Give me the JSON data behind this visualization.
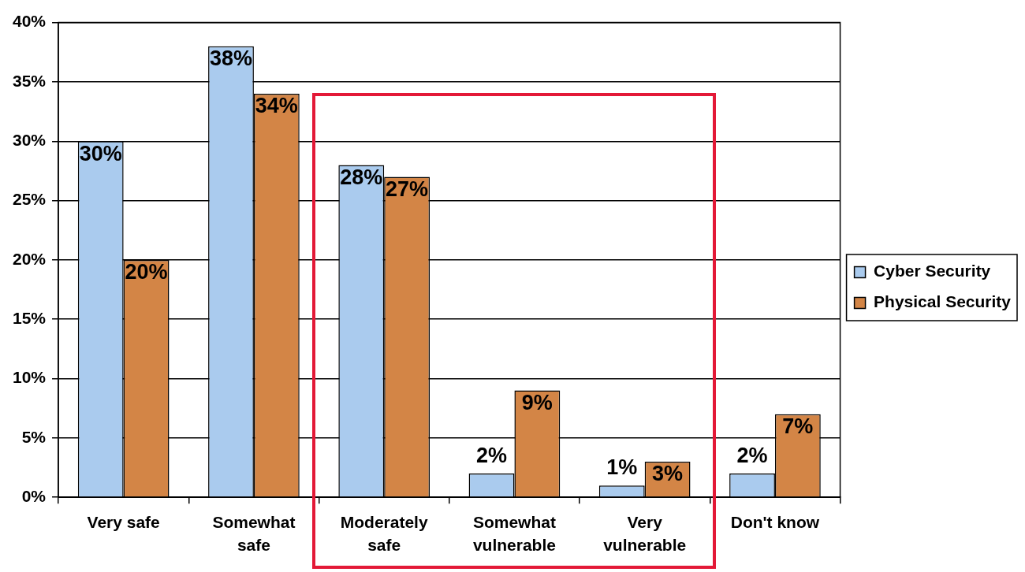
{
  "chart_data": {
    "type": "bar",
    "categories": [
      "Very safe",
      "Somewhat safe",
      "Moderately safe",
      "Somewhat vulnerable",
      "Very vulnerable",
      "Don't know"
    ],
    "series": [
      {
        "name": "Cyber Security",
        "color": "#aacbee",
        "values": [
          30,
          38,
          28,
          2,
          1,
          2
        ],
        "value_labels": [
          "30%",
          "38%",
          "28%",
          "2%",
          "1%",
          "2%"
        ]
      },
      {
        "name": "Physical Security",
        "color": "#d38546",
        "values": [
          20,
          34,
          27,
          9,
          3,
          7
        ],
        "value_labels": [
          "20%",
          "34%",
          "27%",
          "9%",
          "3%",
          "7%"
        ]
      }
    ],
    "ylim": [
      0,
      40
    ],
    "yticks": [
      {
        "value": 0,
        "label": "0%"
      },
      {
        "value": 5,
        "label": "5%"
      },
      {
        "value": 10,
        "label": "10%"
      },
      {
        "value": 15,
        "label": "15%"
      },
      {
        "value": 20,
        "label": "20%"
      },
      {
        "value": 25,
        "label": "25%"
      },
      {
        "value": 30,
        "label": "30%"
      },
      {
        "value": 35,
        "label": "35%"
      },
      {
        "value": 40,
        "label": "40%"
      }
    ],
    "grid": "y",
    "legend": "right"
  }
}
